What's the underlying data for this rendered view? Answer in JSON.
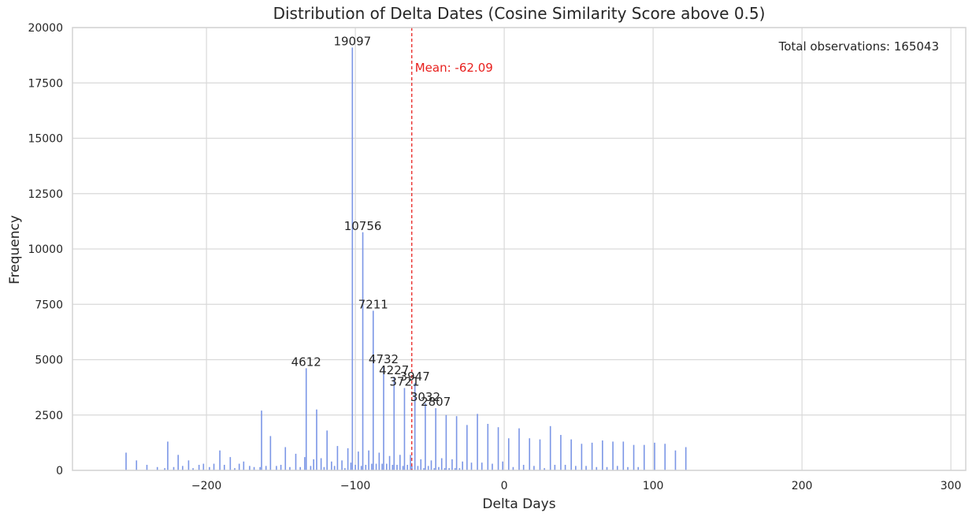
{
  "chart_data": {
    "type": "bar",
    "title": "Distribution of Delta Dates (Cosine Similarity Score above 0.5)",
    "xlabel": "Delta Days",
    "ylabel": "Frequency",
    "xlim": [
      -290,
      310
    ],
    "ylim": [
      0,
      20000
    ],
    "xticks": [
      -200,
      -100,
      0,
      100,
      200,
      300
    ],
    "xtick_labels": [
      "−200",
      "−100",
      "0",
      "100",
      "200",
      "300"
    ],
    "yticks": [
      0,
      2500,
      5000,
      7500,
      10000,
      12500,
      15000,
      17500,
      20000
    ],
    "ytick_labels": [
      "0",
      "2500",
      "5000",
      "7500",
      "10000",
      "12500",
      "15000",
      "17500",
      "20000"
    ],
    "grid": true,
    "bar_color": "#7b96e6",
    "mean": -62.09,
    "mean_label": "Mean: -62.09",
    "mean_color": "#e8201e",
    "total_label": "Total observations: 165043",
    "bars": [
      {
        "x": -254,
        "y": 800
      },
      {
        "x": -247,
        "y": 450
      },
      {
        "x": -240,
        "y": 250
      },
      {
        "x": -233,
        "y": 150
      },
      {
        "x": -228,
        "y": 100
      },
      {
        "x": -226,
        "y": 1300
      },
      {
        "x": -222,
        "y": 150
      },
      {
        "x": -219,
        "y": 700
      },
      {
        "x": -216,
        "y": 200
      },
      {
        "x": -212,
        "y": 450
      },
      {
        "x": -209,
        "y": 100
      },
      {
        "x": -205,
        "y": 250
      },
      {
        "x": -202,
        "y": 300
      },
      {
        "x": -198,
        "y": 150
      },
      {
        "x": -195,
        "y": 300
      },
      {
        "x": -191,
        "y": 900
      },
      {
        "x": -188,
        "y": 250
      },
      {
        "x": -184,
        "y": 600
      },
      {
        "x": -181,
        "y": 100
      },
      {
        "x": -178,
        "y": 300
      },
      {
        "x": -175,
        "y": 400
      },
      {
        "x": -171,
        "y": 200
      },
      {
        "x": -168,
        "y": 150
      },
      {
        "x": -164,
        "y": 150
      },
      {
        "x": -163,
        "y": 2700
      },
      {
        "x": -160,
        "y": 200
      },
      {
        "x": -157,
        "y": 1550
      },
      {
        "x": -153,
        "y": 200
      },
      {
        "x": -150,
        "y": 250
      },
      {
        "x": -147,
        "y": 1050
      },
      {
        "x": -144,
        "y": 150
      },
      {
        "x": -140,
        "y": 750
      },
      {
        "x": -137,
        "y": 150
      },
      {
        "x": -134,
        "y": 600
      },
      {
        "x": -133,
        "y": 4612,
        "label": "4612"
      },
      {
        "x": -130,
        "y": 200
      },
      {
        "x": -128,
        "y": 500
      },
      {
        "x": -126,
        "y": 2750
      },
      {
        "x": -123,
        "y": 550
      },
      {
        "x": -121,
        "y": 150
      },
      {
        "x": -119,
        "y": 1800
      },
      {
        "x": -116,
        "y": 400
      },
      {
        "x": -114,
        "y": 200
      },
      {
        "x": -112,
        "y": 1100
      },
      {
        "x": -109,
        "y": 450
      },
      {
        "x": -107,
        "y": 100
      },
      {
        "x": -105,
        "y": 1000
      },
      {
        "x": -103,
        "y": 350
      },
      {
        "x": -102,
        "y": 19097,
        "label": "19097"
      },
      {
        "x": -100,
        "y": 250
      },
      {
        "x": -98,
        "y": 850
      },
      {
        "x": -96,
        "y": 200
      },
      {
        "x": -95,
        "y": 10756,
        "label": "10756"
      },
      {
        "x": -93,
        "y": 250
      },
      {
        "x": -91,
        "y": 900
      },
      {
        "x": -89,
        "y": 300
      },
      {
        "x": -88,
        "y": 7211,
        "label": "7211"
      },
      {
        "x": -86,
        "y": 300
      },
      {
        "x": -84,
        "y": 800
      },
      {
        "x": -82,
        "y": 300
      },
      {
        "x": -81,
        "y": 4732,
        "label": "4732"
      },
      {
        "x": -79,
        "y": 300
      },
      {
        "x": -77,
        "y": 650
      },
      {
        "x": -75,
        "y": 250
      },
      {
        "x": -74,
        "y": 4227,
        "label": "4227"
      },
      {
        "x": -72,
        "y": 250
      },
      {
        "x": -70,
        "y": 700
      },
      {
        "x": -68,
        "y": 200
      },
      {
        "x": -67,
        "y": 3721,
        "label": "3721"
      },
      {
        "x": -65,
        "y": 250
      },
      {
        "x": -63,
        "y": 700
      },
      {
        "x": -62,
        "y": 200
      },
      {
        "x": -60,
        "y": 3947,
        "label": "3947"
      },
      {
        "x": -58,
        "y": 200
      },
      {
        "x": -56,
        "y": 500
      },
      {
        "x": -54,
        "y": 100
      },
      {
        "x": -53,
        "y": 3032,
        "label": "3032"
      },
      {
        "x": -51,
        "y": 200
      },
      {
        "x": -49,
        "y": 450
      },
      {
        "x": -47,
        "y": 100
      },
      {
        "x": -46,
        "y": 2807,
        "label": "2807"
      },
      {
        "x": -44,
        "y": 150
      },
      {
        "x": -42,
        "y": 550
      },
      {
        "x": -40,
        "y": 100
      },
      {
        "x": -39,
        "y": 2500
      },
      {
        "x": -37,
        "y": 100
      },
      {
        "x": -35,
        "y": 500
      },
      {
        "x": -33,
        "y": 100
      },
      {
        "x": -32,
        "y": 2450
      },
      {
        "x": -30,
        "y": 100
      },
      {
        "x": -28,
        "y": 400
      },
      {
        "x": -25,
        "y": 2050
      },
      {
        "x": -22,
        "y": 350
      },
      {
        "x": -18,
        "y": 2550
      },
      {
        "x": -15,
        "y": 350
      },
      {
        "x": -11,
        "y": 2100
      },
      {
        "x": -8,
        "y": 300
      },
      {
        "x": -4,
        "y": 1950
      },
      {
        "x": -1,
        "y": 400
      },
      {
        "x": 3,
        "y": 1450
      },
      {
        "x": 6,
        "y": 150
      },
      {
        "x": 10,
        "y": 1900
      },
      {
        "x": 13,
        "y": 250
      },
      {
        "x": 17,
        "y": 1450
      },
      {
        "x": 20,
        "y": 200
      },
      {
        "x": 24,
        "y": 1400
      },
      {
        "x": 27,
        "y": 100
      },
      {
        "x": 31,
        "y": 2000
      },
      {
        "x": 34,
        "y": 250
      },
      {
        "x": 38,
        "y": 1600
      },
      {
        "x": 41,
        "y": 250
      },
      {
        "x": 45,
        "y": 1400
      },
      {
        "x": 48,
        "y": 200
      },
      {
        "x": 52,
        "y": 1200
      },
      {
        "x": 55,
        "y": 200
      },
      {
        "x": 59,
        "y": 1250
      },
      {
        "x": 62,
        "y": 150
      },
      {
        "x": 66,
        "y": 1350
      },
      {
        "x": 69,
        "y": 150
      },
      {
        "x": 73,
        "y": 1300
      },
      {
        "x": 76,
        "y": 200
      },
      {
        "x": 80,
        "y": 1300
      },
      {
        "x": 83,
        "y": 150
      },
      {
        "x": 87,
        "y": 1150
      },
      {
        "x": 90,
        "y": 150
      },
      {
        "x": 94,
        "y": 1150
      },
      {
        "x": 101,
        "y": 1250
      },
      {
        "x": 108,
        "y": 1200
      },
      {
        "x": 115,
        "y": 900
      },
      {
        "x": 122,
        "y": 1050
      }
    ]
  }
}
